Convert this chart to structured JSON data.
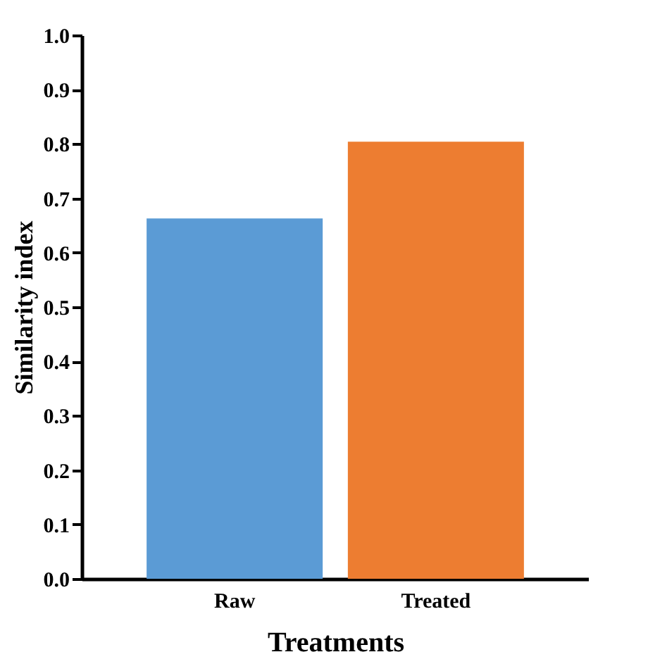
{
  "chart_data": {
    "type": "bar",
    "xlabel": "Treatments",
    "ylabel": "Similarity index",
    "categories": [
      "Raw",
      "Treated"
    ],
    "values": [
      0.663,
      0.804
    ],
    "colors": [
      "#5b9bd5",
      "#ed7d31"
    ],
    "ylim": [
      0,
      1.0
    ],
    "yticks": [
      {
        "value": 0,
        "label": "0.0"
      },
      {
        "value": 0.1,
        "label": "0.1"
      },
      {
        "value": 0.2,
        "label": "0.2"
      },
      {
        "value": 0.3,
        "label": "0.3"
      },
      {
        "value": 0.4,
        "label": "0.4"
      },
      {
        "value": 0.5,
        "label": "0.5"
      },
      {
        "value": 0.6,
        "label": "0.6"
      },
      {
        "value": 0.7,
        "label": "0.7"
      },
      {
        "value": 0.8,
        "label": "0.8"
      },
      {
        "value": 0.9,
        "label": "0.9"
      },
      {
        "value": 1.0,
        "label": "1.0"
      }
    ],
    "grid": false
  }
}
